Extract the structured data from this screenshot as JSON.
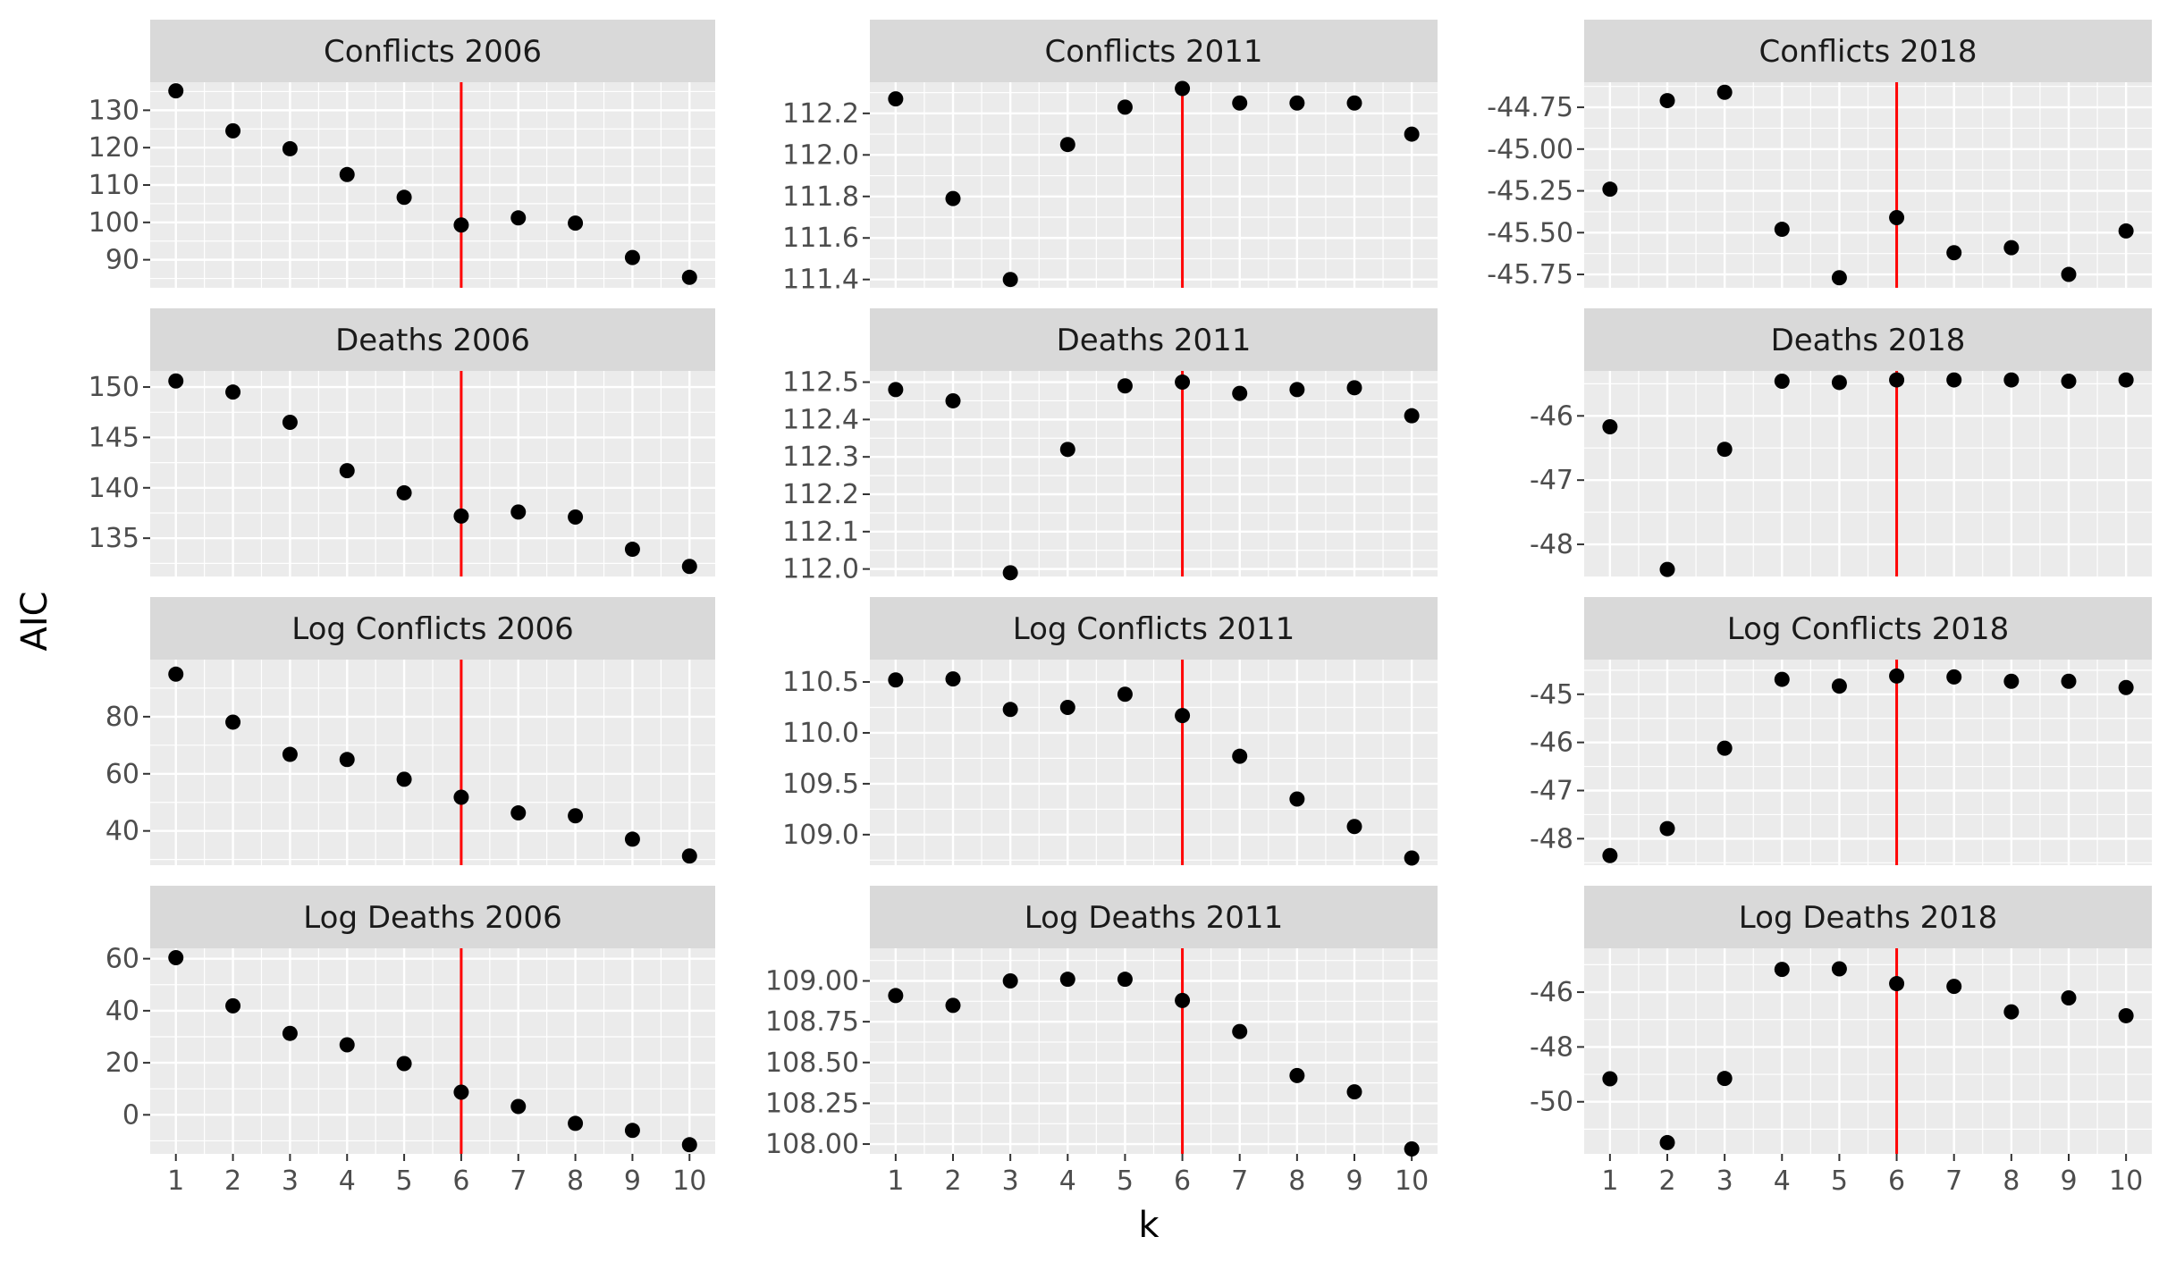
{
  "chart_data": {
    "type": "scatter",
    "xlabel": "k",
    "ylabel": "AIC",
    "x": [
      1,
      2,
      3,
      4,
      5,
      6,
      7,
      8,
      9,
      10
    ],
    "vline_x": 6,
    "colors": {
      "panel_bg": "#ebebeb",
      "strip_bg": "#d9d9d9",
      "grid": "#ffffff",
      "point": "#000000",
      "vline": "#ff0000",
      "tick_text": "#4d4d4d"
    },
    "panels": [
      {
        "title": "Conflicts 2006",
        "ylim": [
          82.5,
          137.5
        ],
        "yticks": [
          90,
          100,
          110,
          120,
          130
        ],
        "ytick_labels": [
          "90",
          "100",
          "110",
          "120",
          "130"
        ],
        "y": [
          135.2,
          124.5,
          119.7,
          112.8,
          106.7,
          99.3,
          101.2,
          99.8,
          90.6,
          85.3
        ]
      },
      {
        "title": "Conflicts 2011",
        "ylim": [
          111.36,
          112.35
        ],
        "yticks": [
          111.4,
          111.6,
          111.8,
          112.0,
          112.2
        ],
        "ytick_labels": [
          "111.4",
          "111.6",
          "111.8",
          "112.0",
          "112.2"
        ],
        "y": [
          112.27,
          111.79,
          111.4,
          112.05,
          112.23,
          112.32,
          112.25,
          112.25,
          112.25,
          112.1
        ]
      },
      {
        "title": "Conflicts 2018",
        "ylim": [
          -45.83,
          -44.6
        ],
        "yticks": [
          -45.75,
          -45.5,
          -45.25,
          -45.0,
          -44.75
        ],
        "ytick_labels": [
          "-45.75",
          "-45.50",
          "-45.25",
          "-45.00",
          "-44.75"
        ],
        "y": [
          -45.24,
          -44.71,
          -44.66,
          -45.48,
          -45.77,
          -45.41,
          -45.62,
          -45.59,
          -45.75,
          -45.49
        ]
      },
      {
        "title": "Deaths 2006",
        "ylim": [
          131.2,
          151.6
        ],
        "yticks": [
          135,
          140,
          145,
          150
        ],
        "ytick_labels": [
          "135",
          "140",
          "145",
          "150"
        ],
        "y": [
          150.6,
          149.5,
          146.5,
          141.7,
          139.5,
          137.2,
          137.6,
          137.1,
          133.9,
          132.2
        ]
      },
      {
        "title": "Deaths 2011",
        "ylim": [
          111.98,
          112.53
        ],
        "yticks": [
          112.0,
          112.1,
          112.2,
          112.3,
          112.4,
          112.5
        ],
        "ytick_labels": [
          "112.0",
          "112.1",
          "112.2",
          "112.3",
          "112.4",
          "112.5"
        ],
        "y": [
          112.48,
          112.45,
          111.99,
          112.32,
          112.49,
          112.5,
          112.47,
          112.48,
          112.485,
          112.41
        ]
      },
      {
        "title": "Deaths 2018",
        "ylim": [
          -48.5,
          -45.3
        ],
        "yticks": [
          -48,
          -47,
          -46
        ],
        "ytick_labels": [
          "-48",
          "-47",
          "-46"
        ],
        "y": [
          -46.17,
          -48.39,
          -46.52,
          -45.46,
          -45.48,
          -45.44,
          -45.44,
          -45.44,
          -45.46,
          -45.44
        ]
      },
      {
        "title": "Log Conflicts 2006",
        "ylim": [
          28,
          100
        ],
        "yticks": [
          40,
          60,
          80
        ],
        "ytick_labels": [
          "40",
          "60",
          "80"
        ],
        "y": [
          94.9,
          78.1,
          66.8,
          65.0,
          58.1,
          51.8,
          46.3,
          45.3,
          37.1,
          31.2
        ]
      },
      {
        "title": "Log Conflicts 2011",
        "ylim": [
          108.7,
          110.72
        ],
        "yticks": [
          109.0,
          109.5,
          110.0,
          110.5
        ],
        "ytick_labels": [
          "109.0",
          "109.5",
          "110.0",
          "110.5"
        ],
        "y": [
          110.52,
          110.53,
          110.23,
          110.25,
          110.38,
          110.17,
          109.77,
          109.35,
          109.08,
          108.77
        ]
      },
      {
        "title": "Log Conflicts 2018",
        "ylim": [
          -48.55,
          -44.28
        ],
        "yticks": [
          -48,
          -47,
          -46,
          -45
        ],
        "ytick_labels": [
          "-48",
          "-47",
          "-46",
          "-45"
        ],
        "y": [
          -48.35,
          -47.79,
          -46.12,
          -44.69,
          -44.83,
          -44.62,
          -44.64,
          -44.73,
          -44.73,
          -44.86
        ]
      },
      {
        "title": "Log Deaths 2006",
        "ylim": [
          -15,
          64
        ],
        "yticks": [
          0,
          20,
          40,
          60
        ],
        "ytick_labels": [
          "0",
          "20",
          "40",
          "60"
        ],
        "y": [
          60.4,
          41.9,
          31.3,
          26.9,
          19.7,
          8.7,
          3.2,
          -3.3,
          -6.0,
          -11.5
        ]
      },
      {
        "title": "Log Deaths 2011",
        "ylim": [
          107.94,
          109.2
        ],
        "yticks": [
          108.0,
          108.25,
          108.5,
          108.75,
          109.0
        ],
        "ytick_labels": [
          "108.00",
          "108.25",
          "108.50",
          "108.75",
          "109.00"
        ],
        "y": [
          108.91,
          108.85,
          109.0,
          109.01,
          109.01,
          108.88,
          108.69,
          108.42,
          108.32,
          107.97
        ]
      },
      {
        "title": "Log Deaths 2018",
        "ylim": [
          -51.9,
          -44.4
        ],
        "yticks": [
          -50,
          -48,
          -46
        ],
        "ytick_labels": [
          "-50",
          "-48",
          "-46"
        ],
        "y": [
          -49.16,
          -51.49,
          -49.15,
          -45.17,
          -45.15,
          -45.69,
          -45.79,
          -46.72,
          -46.21,
          -46.86
        ]
      }
    ]
  }
}
